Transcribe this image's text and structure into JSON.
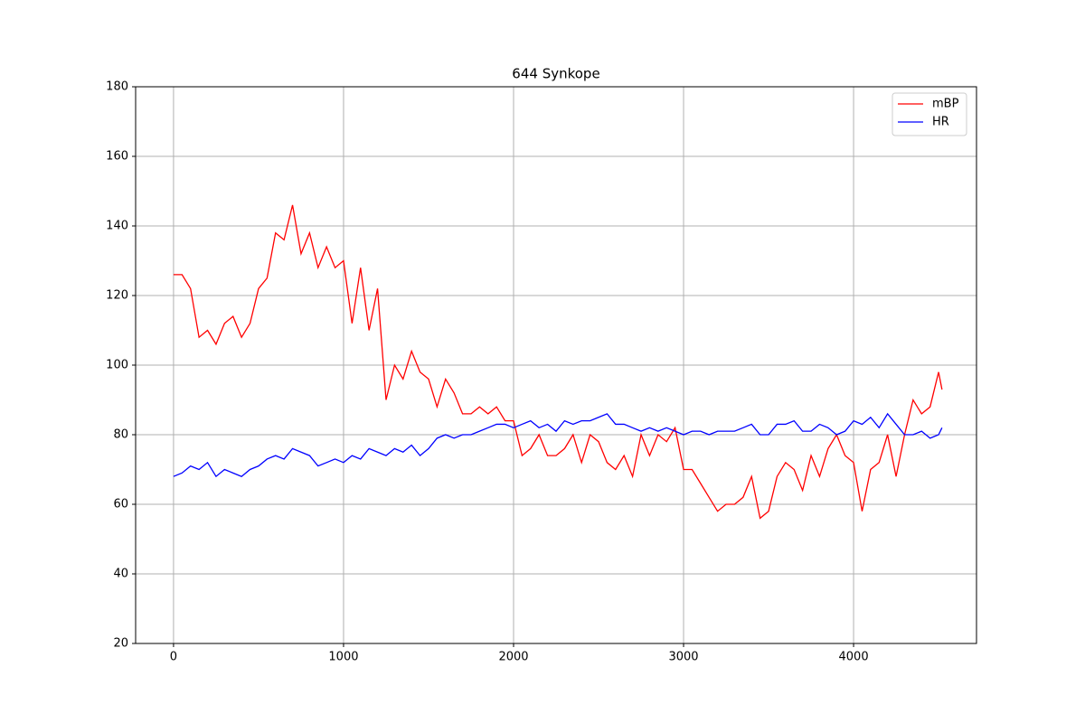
{
  "chart_data": {
    "type": "line",
    "title": "644 Synkope",
    "x": [
      0,
      50,
      100,
      150,
      200,
      250,
      300,
      350,
      400,
      450,
      500,
      550,
      600,
      650,
      700,
      750,
      800,
      850,
      900,
      950,
      1000,
      1050,
      1100,
      1150,
      1200,
      1250,
      1300,
      1350,
      1400,
      1450,
      1500,
      1550,
      1600,
      1650,
      1700,
      1750,
      1800,
      1850,
      1900,
      1950,
      2000,
      2050,
      2100,
      2150,
      2200,
      2250,
      2300,
      2350,
      2400,
      2450,
      2500,
      2550,
      2600,
      2650,
      2700,
      2750,
      2800,
      2850,
      2900,
      2950,
      3000,
      3050,
      3100,
      3150,
      3200,
      3250,
      3300,
      3350,
      3400,
      3450,
      3500,
      3550,
      3600,
      3650,
      3700,
      3750,
      3800,
      3850,
      3900,
      3950,
      4000,
      4050,
      4100,
      4150,
      4200,
      4250,
      4300,
      4350,
      4400,
      4450,
      4500,
      4520
    ],
    "series": [
      {
        "name": "mBP",
        "color": "#ff0000",
        "values": [
          126,
          126,
          122,
          108,
          110,
          106,
          112,
          114,
          108,
          112,
          122,
          125,
          138,
          136,
          146,
          132,
          138,
          128,
          134,
          128,
          130,
          112,
          128,
          110,
          122,
          90,
          100,
          96,
          104,
          98,
          96,
          88,
          96,
          92,
          86,
          86,
          88,
          86,
          88,
          84,
          84,
          74,
          76,
          80,
          74,
          74,
          76,
          80,
          72,
          80,
          78,
          72,
          70,
          74,
          68,
          80,
          74,
          80,
          78,
          82,
          70,
          70,
          66,
          62,
          58,
          60,
          60,
          62,
          68,
          56,
          58,
          68,
          72,
          70,
          64,
          74,
          68,
          76,
          80,
          74,
          72,
          58,
          70,
          72,
          80,
          68,
          80,
          90,
          86,
          88,
          98,
          93
        ]
      },
      {
        "name": "HR",
        "color": "#0000ff",
        "values": [
          68,
          69,
          71,
          70,
          72,
          68,
          70,
          69,
          68,
          70,
          71,
          73,
          74,
          73,
          76,
          75,
          74,
          71,
          72,
          73,
          72,
          74,
          73,
          76,
          75,
          74,
          76,
          75,
          77,
          74,
          76,
          79,
          80,
          79,
          80,
          80,
          81,
          82,
          83,
          83,
          82,
          83,
          84,
          82,
          83,
          81,
          84,
          83,
          84,
          84,
          85,
          86,
          83,
          83,
          82,
          81,
          82,
          81,
          82,
          81,
          80,
          81,
          81,
          80,
          81,
          81,
          81,
          82,
          83,
          80,
          80,
          83,
          83,
          84,
          81,
          81,
          83,
          82,
          80,
          81,
          84,
          83,
          85,
          82,
          86,
          83,
          80,
          80,
          81,
          79,
          80,
          82
        ]
      }
    ],
    "xlim": [
      -223,
      4723
    ],
    "xticks": [
      0,
      1000,
      2000,
      3000,
      4000
    ],
    "ylim": [
      20,
      180
    ],
    "yticks": [
      20,
      40,
      60,
      80,
      100,
      120,
      140,
      160,
      180
    ],
    "grid": true,
    "legend": "upper right"
  }
}
